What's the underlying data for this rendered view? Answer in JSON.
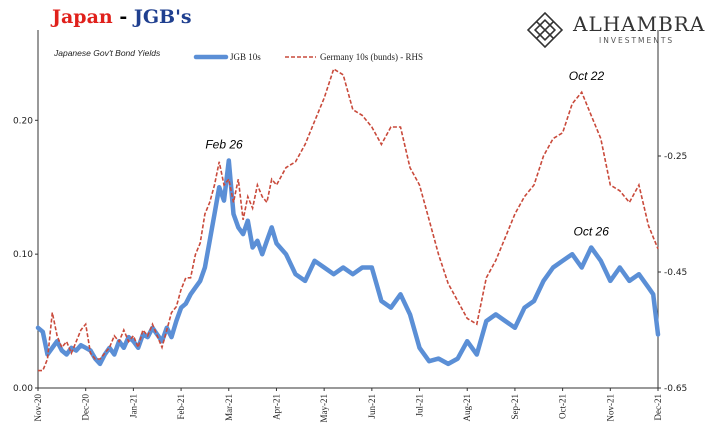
{
  "header": {
    "title_part1": "Japan",
    "title_sep": " - ",
    "title_part2": "JGB's",
    "brand_name": "ALHAMBRA",
    "brand_sub": "INVESTMENTS",
    "brand_logo_icon": "diamond-pattern-icon"
  },
  "colors": {
    "title_red": "#e0201b",
    "title_blue": "#1f3f8f",
    "series_blue": "#5b8fd6",
    "series_red": "#c94a3b"
  },
  "chart_data": {
    "type": "line",
    "subtitle": "Japanese Gov't Bond Yields",
    "legend_position": "top",
    "grid": false,
    "x_tick_labels": [
      "Nov-20",
      "Dec-20",
      "Jan-21",
      "Feb-21",
      "Mar-21",
      "Apr-21",
      "May-21",
      "Jun-21",
      "Jul-21",
      "Aug-21",
      "Sep-21",
      "Oct-21",
      "Nov-21",
      "Dec-21"
    ],
    "x_range": [
      0,
      13
    ],
    "left_axis": {
      "ylim": [
        0.0,
        0.26
      ],
      "ticks": [
        "0.00",
        "0.10",
        "0.20"
      ],
      "tick_values": [
        0.0,
        0.1,
        0.2
      ]
    },
    "right_axis": {
      "ylim": [
        -0.65,
        -0.05
      ],
      "ticks": [
        "-0.25",
        "-0.45",
        "-0.65"
      ],
      "tick_values": [
        -0.25,
        -0.45,
        -0.65
      ]
    },
    "series": [
      {
        "name": "JGB 10s",
        "axis": "left",
        "x": [
          0.0,
          0.1,
          0.2,
          0.3,
          0.4,
          0.5,
          0.6,
          0.7,
          0.8,
          0.9,
          1.0,
          1.1,
          1.2,
          1.3,
          1.4,
          1.5,
          1.6,
          1.7,
          1.8,
          1.9,
          2.0,
          2.1,
          2.2,
          2.3,
          2.4,
          2.5,
          2.6,
          2.7,
          2.8,
          2.9,
          3.0,
          3.1,
          3.2,
          3.3,
          3.4,
          3.5,
          3.6,
          3.7,
          3.8,
          3.9,
          4.0,
          4.1,
          4.2,
          4.3,
          4.4,
          4.5,
          4.6,
          4.7,
          4.8,
          4.9,
          5.0,
          5.2,
          5.4,
          5.6,
          5.8,
          6.0,
          6.2,
          6.4,
          6.6,
          6.8,
          7.0,
          7.2,
          7.4,
          7.6,
          7.8,
          8.0,
          8.2,
          8.4,
          8.6,
          8.8,
          9.0,
          9.2,
          9.4,
          9.6,
          9.8,
          10.0,
          10.2,
          10.4,
          10.6,
          10.8,
          11.0,
          11.2,
          11.4,
          11.6,
          11.8,
          12.0,
          12.2,
          12.4,
          12.6,
          12.8,
          12.9,
          13.0
        ],
        "y": [
          0.045,
          0.042,
          0.025,
          0.03,
          0.035,
          0.028,
          0.025,
          0.03,
          0.028,
          0.032,
          0.03,
          0.028,
          0.022,
          0.018,
          0.025,
          0.03,
          0.025,
          0.035,
          0.03,
          0.038,
          0.035,
          0.03,
          0.04,
          0.038,
          0.045,
          0.04,
          0.035,
          0.045,
          0.038,
          0.05,
          0.06,
          0.063,
          0.07,
          0.075,
          0.08,
          0.09,
          0.11,
          0.13,
          0.15,
          0.14,
          0.17,
          0.13,
          0.12,
          0.115,
          0.125,
          0.105,
          0.11,
          0.1,
          0.11,
          0.12,
          0.108,
          0.1,
          0.085,
          0.08,
          0.095,
          0.09,
          0.085,
          0.09,
          0.085,
          0.09,
          0.09,
          0.065,
          0.06,
          0.07,
          0.055,
          0.03,
          0.02,
          0.022,
          0.018,
          0.022,
          0.035,
          0.025,
          0.05,
          0.055,
          0.05,
          0.045,
          0.06,
          0.065,
          0.08,
          0.09,
          0.095,
          0.1,
          0.09,
          0.105,
          0.095,
          0.08,
          0.09,
          0.08,
          0.085,
          0.075,
          0.07,
          0.04
        ]
      },
      {
        "name": "Germany 10s (bunds) - RHS",
        "axis": "right",
        "x": [
          0.0,
          0.1,
          0.2,
          0.3,
          0.4,
          0.5,
          0.6,
          0.7,
          0.8,
          0.9,
          1.0,
          1.1,
          1.2,
          1.3,
          1.4,
          1.5,
          1.6,
          1.7,
          1.8,
          1.9,
          2.0,
          2.1,
          2.2,
          2.3,
          2.4,
          2.5,
          2.6,
          2.7,
          2.8,
          2.9,
          3.0,
          3.1,
          3.2,
          3.3,
          3.4,
          3.5,
          3.6,
          3.7,
          3.8,
          3.9,
          4.0,
          4.1,
          4.2,
          4.3,
          4.4,
          4.5,
          4.6,
          4.7,
          4.8,
          4.9,
          5.0,
          5.2,
          5.4,
          5.6,
          5.8,
          6.0,
          6.2,
          6.4,
          6.6,
          6.8,
          7.0,
          7.2,
          7.4,
          7.6,
          7.8,
          8.0,
          8.2,
          8.4,
          8.6,
          8.8,
          9.0,
          9.2,
          9.4,
          9.6,
          9.8,
          10.0,
          10.2,
          10.4,
          10.6,
          10.8,
          11.0,
          11.2,
          11.4,
          11.6,
          11.8,
          12.0,
          12.2,
          12.4,
          12.6,
          12.8,
          12.9,
          13.0
        ],
        "y": [
          -0.62,
          -0.62,
          -0.6,
          -0.52,
          -0.56,
          -0.58,
          -0.57,
          -0.59,
          -0.57,
          -0.55,
          -0.54,
          -0.59,
          -0.6,
          -0.6,
          -0.59,
          -0.58,
          -0.56,
          -0.57,
          -0.55,
          -0.57,
          -0.56,
          -0.58,
          -0.55,
          -0.56,
          -0.54,
          -0.56,
          -0.58,
          -0.55,
          -0.52,
          -0.51,
          -0.48,
          -0.46,
          -0.46,
          -0.42,
          -0.4,
          -0.35,
          -0.33,
          -0.3,
          -0.26,
          -0.3,
          -0.29,
          -0.33,
          -0.29,
          -0.36,
          -0.32,
          -0.34,
          -0.3,
          -0.32,
          -0.33,
          -0.29,
          -0.3,
          -0.27,
          -0.26,
          -0.23,
          -0.19,
          -0.15,
          -0.1,
          -0.11,
          -0.17,
          -0.18,
          -0.2,
          -0.23,
          -0.2,
          -0.2,
          -0.27,
          -0.3,
          -0.36,
          -0.42,
          -0.47,
          -0.5,
          -0.53,
          -0.54,
          -0.46,
          -0.43,
          -0.39,
          -0.35,
          -0.32,
          -0.3,
          -0.25,
          -0.22,
          -0.21,
          -0.16,
          -0.14,
          -0.18,
          -0.22,
          -0.3,
          -0.31,
          -0.33,
          -0.3,
          -0.37,
          -0.39,
          -0.41
        ]
      }
    ],
    "annotations": [
      {
        "text": "Feb 26",
        "x": 3.9,
        "y": 0.17,
        "axis": "left"
      },
      {
        "text": "Oct 26",
        "x": 11.6,
        "y": 0.105,
        "axis": "left"
      },
      {
        "text": "Oct 22",
        "x": 11.5,
        "y": -0.14,
        "axis": "right"
      }
    ]
  }
}
